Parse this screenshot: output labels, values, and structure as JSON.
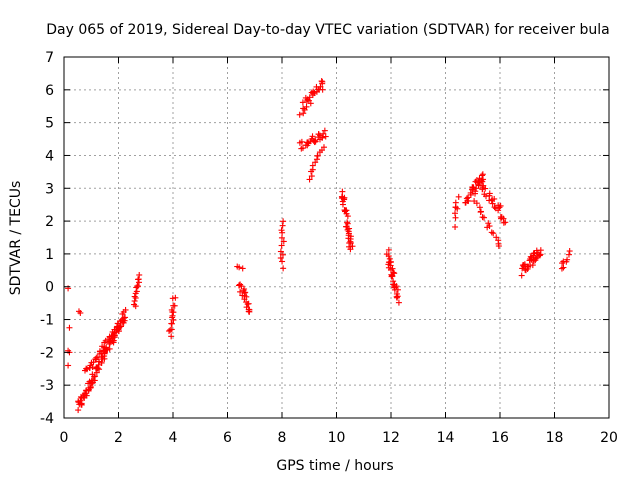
{
  "chart_data": {
    "type": "scatter",
    "title": "Day 065 of 2019, Sidereal Day-to-day VTEC variation (SDTVAR) for receiver bula",
    "xlabel": "GPS time / hours",
    "ylabel": "SDTVAR / TECUs",
    "xlim": [
      0,
      20
    ],
    "ylim": [
      -4,
      7
    ],
    "xticks": [
      0,
      2,
      4,
      6,
      8,
      10,
      12,
      14,
      16,
      18,
      20
    ],
    "yticks": [
      -4,
      -3,
      -2,
      -1,
      0,
      1,
      2,
      3,
      4,
      5,
      6,
      7
    ],
    "grid": true,
    "marker": "+",
    "series_color": "#ff0000",
    "segments": [
      {
        "name": "isolated-early",
        "points": [
          [
            0.15,
            -0.05
          ],
          [
            0.2,
            -1.25
          ],
          [
            0.15,
            -1.95
          ],
          [
            0.2,
            -2.0
          ],
          [
            0.15,
            -2.4
          ],
          [
            0.55,
            -0.75
          ],
          [
            0.6,
            -0.8
          ]
        ]
      },
      {
        "name": "ramp-main-lower",
        "x": [
          0.5,
          2.25
        ],
        "y": [
          -3.7,
          -0.85
        ],
        "count": 90,
        "spread": 0.3
      },
      {
        "name": "ramp-main-upper",
        "x": [
          0.8,
          2.2
        ],
        "y": [
          -2.6,
          -1.0
        ],
        "count": 40,
        "spread": 0.2
      },
      {
        "name": "cluster-2.7",
        "x": [
          2.6,
          2.75
        ],
        "y": [
          -0.55,
          0.35
        ],
        "count": 14,
        "spread": 0.15
      },
      {
        "name": "cluster-4.0",
        "x": [
          3.9,
          4.05
        ],
        "y": [
          -1.5,
          -0.35
        ],
        "count": 16,
        "spread": 0.15
      },
      {
        "name": "cluster-6.5-top",
        "x": [
          6.3,
          6.5
        ],
        "y": [
          0.6,
          0.55
        ],
        "count": 3,
        "spread": 0.05
      },
      {
        "name": "cluster-6.7",
        "x": [
          6.4,
          6.85
        ],
        "y": [
          0.15,
          -0.7
        ],
        "count": 22,
        "spread": 0.3
      },
      {
        "name": "cluster-8.0",
        "x": [
          8.0,
          8.05
        ],
        "y": [
          0.6,
          2.0
        ],
        "count": 12,
        "spread": 0.1
      },
      {
        "name": "rise-8.7",
        "x": [
          8.7,
          9.5
        ],
        "y": [
          5.4,
          6.2
        ],
        "count": 26,
        "spread": 0.35
      },
      {
        "name": "band-8.8-4.5",
        "x": [
          8.7,
          9.6
        ],
        "y": [
          4.3,
          4.7
        ],
        "count": 26,
        "spread": 0.25
      },
      {
        "name": "drop-9.3",
        "x": [
          9.5,
          9.0
        ],
        "y": [
          4.3,
          3.3
        ],
        "count": 12,
        "spread": 0.1
      },
      {
        "name": "column-10.3",
        "x": [
          10.2,
          10.55
        ],
        "y": [
          2.9,
          1.1
        ],
        "count": 34,
        "spread": 0.25
      },
      {
        "name": "column-12.0",
        "x": [
          11.85,
          12.25
        ],
        "y": [
          1.0,
          -0.35
        ],
        "count": 34,
        "spread": 0.35
      },
      {
        "name": "cluster-14.5",
        "x": [
          14.3,
          14.45
        ],
        "y": [
          1.9,
          2.8
        ],
        "count": 8,
        "spread": 0.3
      },
      {
        "name": "hump-15.2",
        "x": [
          14.7,
          15.4
        ],
        "y": [
          2.6,
          3.4
        ],
        "count": 26,
        "spread": 0.3
      },
      {
        "name": "descent-15.8",
        "x": [
          15.2,
          16.2
        ],
        "y": [
          3.2,
          2.1
        ],
        "count": 30,
        "spread": 0.35
      },
      {
        "name": "tail-15.9",
        "x": [
          15.1,
          16.0
        ],
        "y": [
          2.6,
          1.25
        ],
        "count": 16,
        "spread": 0.15
      },
      {
        "name": "cluster-17.0",
        "x": [
          16.8,
          17.5
        ],
        "y": [
          0.5,
          1.1
        ],
        "count": 34,
        "spread": 0.35
      },
      {
        "name": "cluster-18.4",
        "x": [
          18.3,
          18.5
        ],
        "y": [
          0.55,
          0.95
        ],
        "count": 8,
        "spread": 0.3
      }
    ]
  }
}
